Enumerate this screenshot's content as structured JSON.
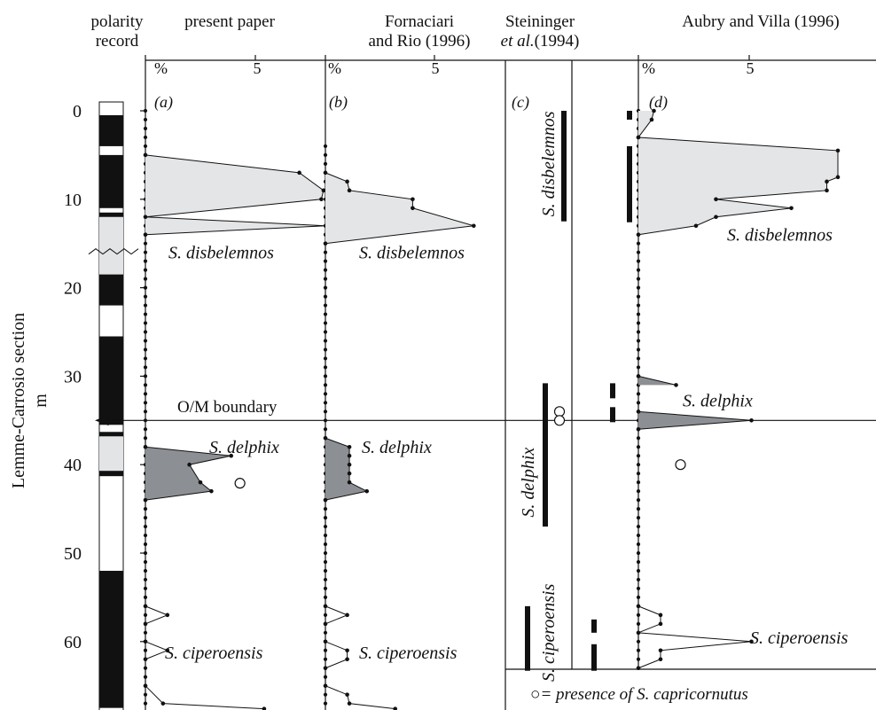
{
  "chart_data": {
    "type": "area",
    "depth_axis": {
      "label_line1": "Lemme-Carrosio section",
      "label_line2": "m",
      "ticks": [
        0,
        10,
        20,
        30,
        40,
        50,
        60
      ],
      "range": [
        -2,
        68
      ]
    },
    "headers": {
      "polarity": [
        "polarity",
        "record"
      ],
      "present": [
        "present paper"
      ],
      "fornaciari": [
        "Fornaciari",
        "and Rio (1996)"
      ],
      "steininger": [
        "Steininger",
        "et al.",
        "(1994)"
      ],
      "aubry": [
        "Aubry and Villa (1996)"
      ]
    },
    "panel_tags": [
      "(a)",
      "(b)",
      "(c)",
      "(d)"
    ],
    "percent_symbol": "%",
    "percent_tick": "5",
    "boundary": {
      "label": "O/M boundary",
      "depth": 35
    },
    "footnote": {
      "symbol": "○",
      "text": "= presence of S. capricornutus"
    },
    "polarity": {
      "normal": [
        [
          0.5,
          4
        ],
        [
          5,
          11
        ],
        [
          11.5,
          12
        ],
        [
          18.5,
          22
        ],
        [
          25.5,
          35.5
        ],
        [
          36.3,
          36.8
        ],
        [
          40.7,
          41.3
        ],
        [
          52,
          67.5
        ]
      ],
      "uncertain": [
        [
          12,
          18.5
        ],
        [
          36.8,
          40.7
        ]
      ]
    },
    "panel_a": {
      "species_labels": [
        {
          "text": "S. disbelemnos",
          "depth": 16
        },
        {
          "text": "S. delphix",
          "depth": 38
        },
        {
          "text": "S. ciperoensis",
          "depth": 61.2
        }
      ],
      "zero_dots": {
        "step": 1,
        "from": 0,
        "to": 67
      },
      "disbelemnos": [
        [
          5,
          0
        ],
        [
          7,
          7
        ],
        [
          9,
          8.1
        ],
        [
          10,
          8
        ],
        [
          12,
          0
        ],
        [
          13,
          8.2
        ],
        [
          14,
          0
        ]
      ],
      "delphix": [
        [
          38,
          0
        ],
        [
          39,
          3.9
        ],
        [
          40,
          2
        ],
        [
          42,
          2.5
        ],
        [
          43,
          3
        ],
        [
          44,
          0
        ]
      ],
      "ciperoensis": [
        [
          56,
          0
        ],
        [
          57,
          1
        ],
        [
          58,
          0
        ],
        [
          60,
          0
        ],
        [
          61,
          1
        ],
        [
          62,
          0
        ],
        [
          65,
          0
        ],
        [
          67,
          0.8
        ],
        [
          67.6,
          5.4
        ]
      ],
      "capricornutus": [
        [
          42.1,
          4.3
        ]
      ]
    },
    "panel_b": {
      "species_labels": [
        {
          "text": "S. disbelemnos",
          "depth": 16
        },
        {
          "text": "S. delphix",
          "depth": 38
        },
        {
          "text": "S. ciperoensis",
          "depth": 61.2
        }
      ],
      "zero_dots": {
        "step": 1,
        "from": 4,
        "to": 67
      },
      "disbelemnos": [
        [
          7,
          0
        ],
        [
          8,
          1
        ],
        [
          9,
          1.1
        ],
        [
          10,
          4
        ],
        [
          11,
          4
        ],
        [
          13,
          6.8
        ],
        [
          15,
          0
        ]
      ],
      "delphix": [
        [
          37,
          0
        ],
        [
          38,
          1.1
        ],
        [
          39,
          1.1
        ],
        [
          40,
          1.1
        ],
        [
          41,
          1.1
        ],
        [
          42,
          1.1
        ],
        [
          43,
          1.9
        ],
        [
          44,
          0
        ]
      ],
      "ciperoensis": [
        [
          56,
          0
        ],
        [
          57,
          1
        ],
        [
          58,
          0
        ],
        [
          60,
          0
        ],
        [
          61,
          1
        ],
        [
          62,
          1
        ],
        [
          63,
          0
        ],
        [
          65,
          0
        ],
        [
          66,
          1
        ],
        [
          67,
          1.1
        ],
        [
          67.6,
          3.2
        ]
      ]
    },
    "panel_c": {
      "species_labels": [
        {
          "text": "S. disbelemnos",
          "depth": 6
        },
        {
          "text": "S. delphix",
          "depth": 42
        },
        {
          "text": "S. ciperoensis",
          "depth": 59
        }
      ],
      "ranges": [
        {
          "col": "c1",
          "from": 0,
          "to": 12.5
        },
        {
          "col": "c1b",
          "from": 30.8,
          "to": 47
        },
        {
          "col": "c1c",
          "from": 56,
          "to": 63.3
        },
        {
          "col": "c2",
          "from": 57.5,
          "to": 59
        },
        {
          "col": "c2",
          "from": 60.3,
          "to": 63.3
        },
        {
          "col": "c3",
          "from": 30.8,
          "to": 32.5
        },
        {
          "col": "c3",
          "from": 33.5,
          "to": 35.2
        },
        {
          "col": "c4",
          "from": 0,
          "to": 1
        },
        {
          "col": "c4",
          "from": 4,
          "to": 12.6
        }
      ],
      "capricornutus": [
        [
          34,
          0
        ],
        [
          35,
          0
        ]
      ]
    },
    "panel_d": {
      "species_labels": [
        {
          "text": "S. disbelemnos",
          "depth": 14
        },
        {
          "text": "S. delphix",
          "depth": 32.7
        },
        {
          "text": "S. ciperoensis",
          "depth": 59.5
        }
      ],
      "zero_dots": {
        "step": 1,
        "from": 16,
        "to": 63
      },
      "disbelemnos_top": [
        [
          3,
          0
        ],
        [
          1,
          0.6
        ],
        [
          0,
          0.7
        ]
      ],
      "disbelemnos": [
        [
          3,
          0
        ],
        [
          4.5,
          9
        ],
        [
          7.5,
          9
        ],
        [
          8,
          8.5
        ],
        [
          9,
          8.5
        ],
        [
          10,
          3.5
        ],
        [
          11,
          6.9
        ],
        [
          12,
          3.5
        ],
        [
          13,
          2.6
        ],
        [
          14,
          0
        ]
      ],
      "delphix": [
        [
          30,
          0
        ],
        [
          31,
          1.7
        ]
      ],
      "delphix_b": [
        [
          34,
          0
        ],
        [
          35,
          5.1
        ],
        [
          36,
          0
        ]
      ],
      "ciperoensis": [
        [
          56,
          0
        ],
        [
          57,
          1
        ],
        [
          58,
          1
        ],
        [
          59,
          0
        ],
        [
          60,
          5.1
        ],
        [
          61,
          1
        ],
        [
          62,
          1
        ],
        [
          63,
          0
        ]
      ],
      "capricornutus": [
        [
          40,
          1.9
        ]
      ]
    }
  }
}
